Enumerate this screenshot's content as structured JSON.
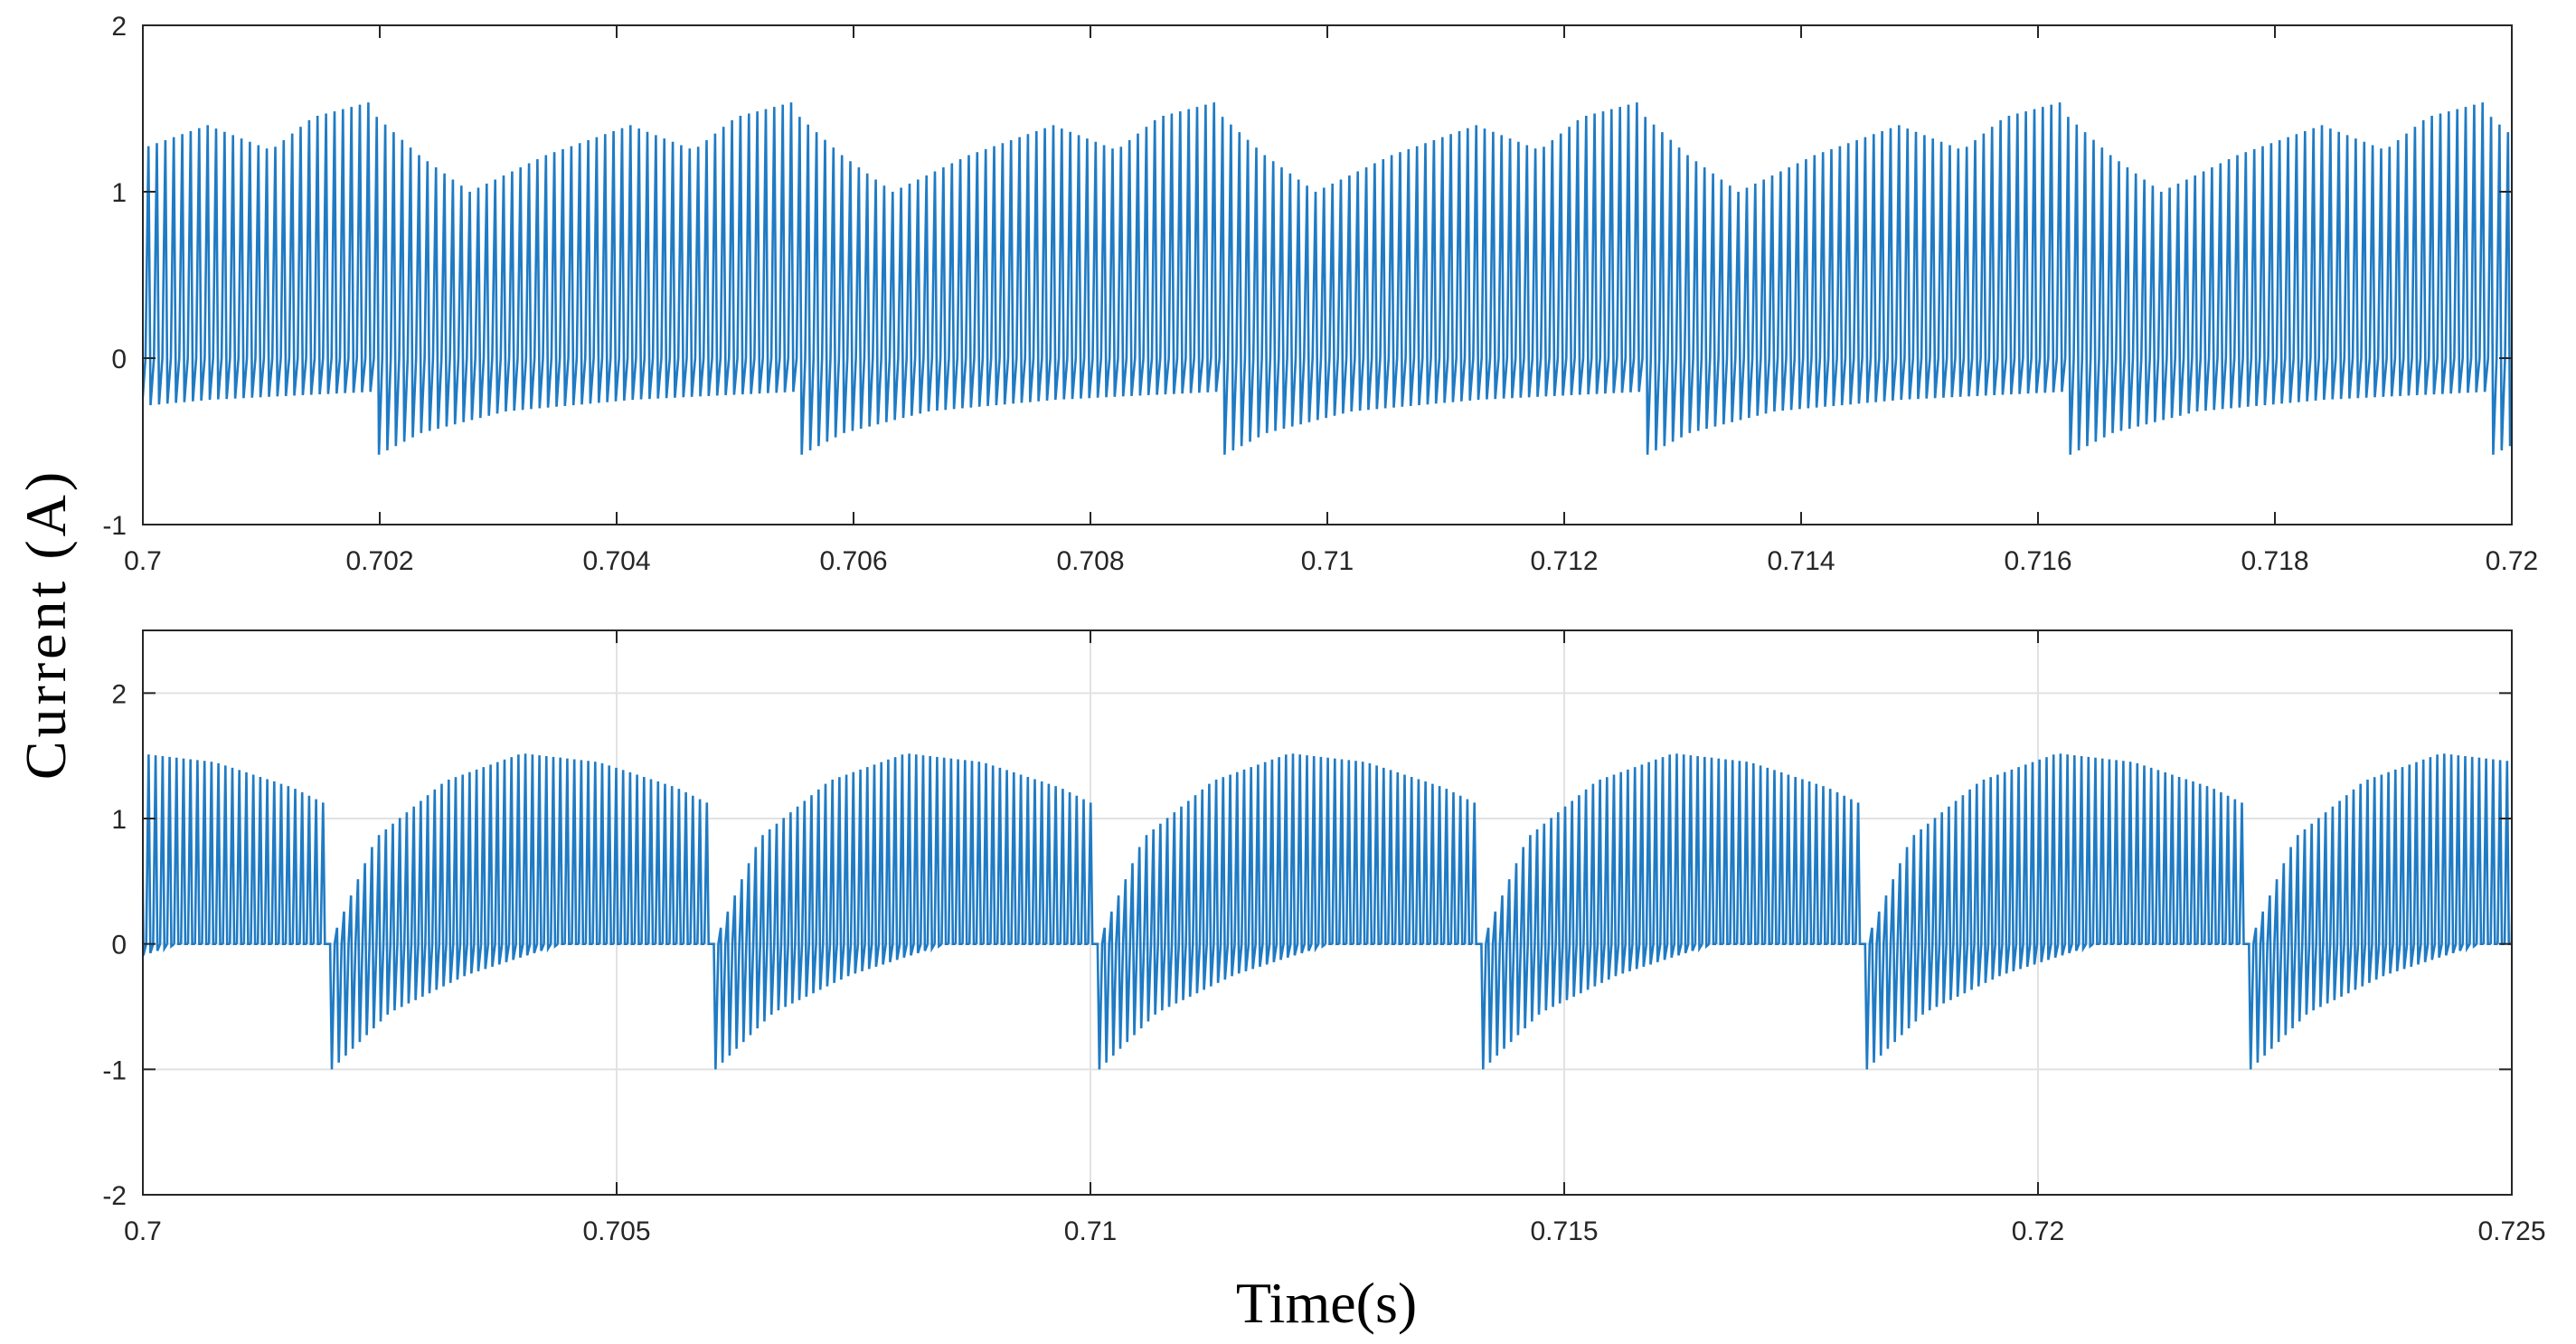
{
  "figure": {
    "ylabel": "Current (A)",
    "xlabel": "Time(s)"
  },
  "chart_data": [
    {
      "type": "line",
      "title": "",
      "xlabel": "",
      "ylabel": "",
      "xlim": [
        0.7,
        0.72
      ],
      "ylim": [
        -1,
        2
      ],
      "xticks": [
        0.7,
        0.702,
        0.704,
        0.706,
        0.708,
        0.71,
        0.712,
        0.714,
        0.716,
        0.718,
        0.72
      ],
      "xtick_labels": [
        "0.7",
        "0.702",
        "0.704",
        "0.706",
        "0.708",
        "0.71",
        "0.712",
        "0.714",
        "0.716",
        "0.718",
        "0.72"
      ],
      "yticks": [
        -1,
        0,
        1,
        2
      ],
      "ytick_labels": [
        "-1",
        "0",
        "1",
        "2"
      ],
      "grid": false,
      "color": "#1f7bc4",
      "waveform": {
        "period_s": 0.00357,
        "first_reset_s": 0.70195,
        "pulses_per_period": 50,
        "envelope_max": [
          [
            0.0,
            1.45
          ],
          [
            0.1,
            1.22
          ],
          [
            0.22,
            1.0
          ],
          [
            0.4,
            1.22
          ],
          [
            0.6,
            1.4
          ],
          [
            0.75,
            1.25
          ],
          [
            0.85,
            1.45
          ],
          [
            1.0,
            1.55
          ]
        ],
        "envelope_min": [
          [
            0.0,
            -0.58
          ],
          [
            0.1,
            -0.45
          ],
          [
            0.3,
            -0.32
          ],
          [
            0.6,
            -0.25
          ],
          [
            1.0,
            -0.2
          ]
        ]
      }
    },
    {
      "type": "line",
      "title": "",
      "xlabel": "",
      "ylabel": "",
      "xlim": [
        0.7,
        0.725
      ],
      "ylim": [
        -2,
        2.5
      ],
      "xticks": [
        0.7,
        0.705,
        0.71,
        0.715,
        0.72,
        0.725
      ],
      "xtick_labels": [
        "0.7",
        "0.705",
        "0.71",
        "0.715",
        "0.72",
        "0.725"
      ],
      "yticks": [
        -2,
        -1,
        0,
        1,
        2
      ],
      "ytick_labels": [
        "-2",
        "-1",
        "0",
        "1",
        "2"
      ],
      "grid": true,
      "color": "#1f7bc4",
      "waveform": {
        "period_s": 0.00405,
        "first_reset_s": 0.70195,
        "pulses_per_period": 55,
        "envelope_max": [
          [
            0.0,
            0.0
          ],
          [
            0.12,
            0.85
          ],
          [
            0.3,
            1.3
          ],
          [
            0.5,
            1.52
          ],
          [
            0.7,
            1.45
          ],
          [
            0.9,
            1.25
          ],
          [
            1.0,
            1.1
          ]
        ],
        "envelope_min": [
          [
            0.0,
            -1.0
          ],
          [
            0.15,
            -0.55
          ],
          [
            0.35,
            -0.25
          ],
          [
            0.55,
            -0.05
          ],
          [
            0.6,
            0.0
          ],
          [
            1.0,
            0.0
          ]
        ]
      }
    }
  ]
}
